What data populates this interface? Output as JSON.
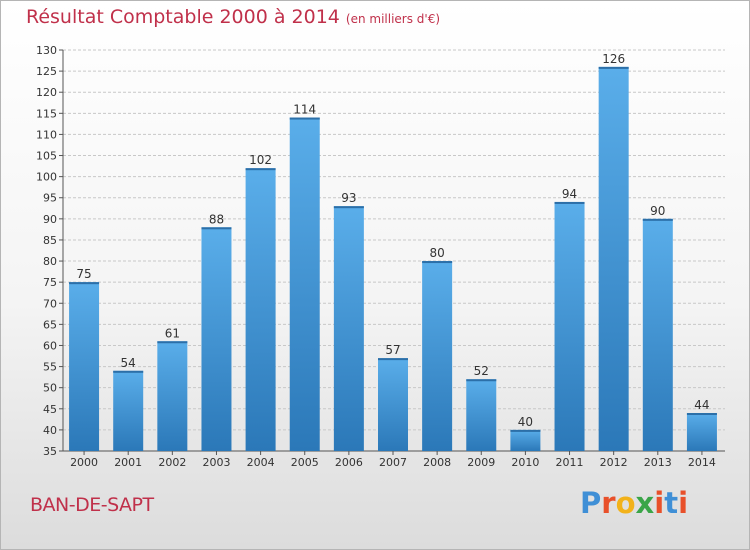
{
  "header": {
    "title": "Résultat Comptable 2000 à 2014",
    "subtitle": "(en milliers d'€)"
  },
  "footer": {
    "city": "BAN-DE-SAPT",
    "logo_text": "Proxiti",
    "logo_colors": [
      "#3f8fd6",
      "#e8502a",
      "#f2b21a",
      "#3aa548",
      "#e8502a",
      "#3f8fd6",
      "#e8502a"
    ]
  },
  "colors": {
    "bar_light": "#5aaeea",
    "bar_dark": "#2b78b8",
    "title": "#c0304a",
    "grid": "#c8c8c8"
  },
  "chart_data": {
    "type": "bar",
    "title": "Résultat Comptable 2000 à 2014",
    "subtitle": "(en milliers d'€)",
    "categories": [
      "2000",
      "2001",
      "2002",
      "2003",
      "2004",
      "2005",
      "2006",
      "2007",
      "2008",
      "2009",
      "2010",
      "2011",
      "2012",
      "2013",
      "2014"
    ],
    "values": [
      75,
      54,
      61,
      88,
      102,
      114,
      93,
      57,
      80,
      52,
      40,
      94,
      126,
      90,
      44
    ],
    "ylim": [
      35,
      130
    ],
    "yticks": [
      35,
      40,
      45,
      50,
      55,
      60,
      65,
      70,
      75,
      80,
      85,
      90,
      95,
      100,
      105,
      110,
      115,
      120,
      125,
      130
    ],
    "grid": true,
    "data_labels": true
  }
}
